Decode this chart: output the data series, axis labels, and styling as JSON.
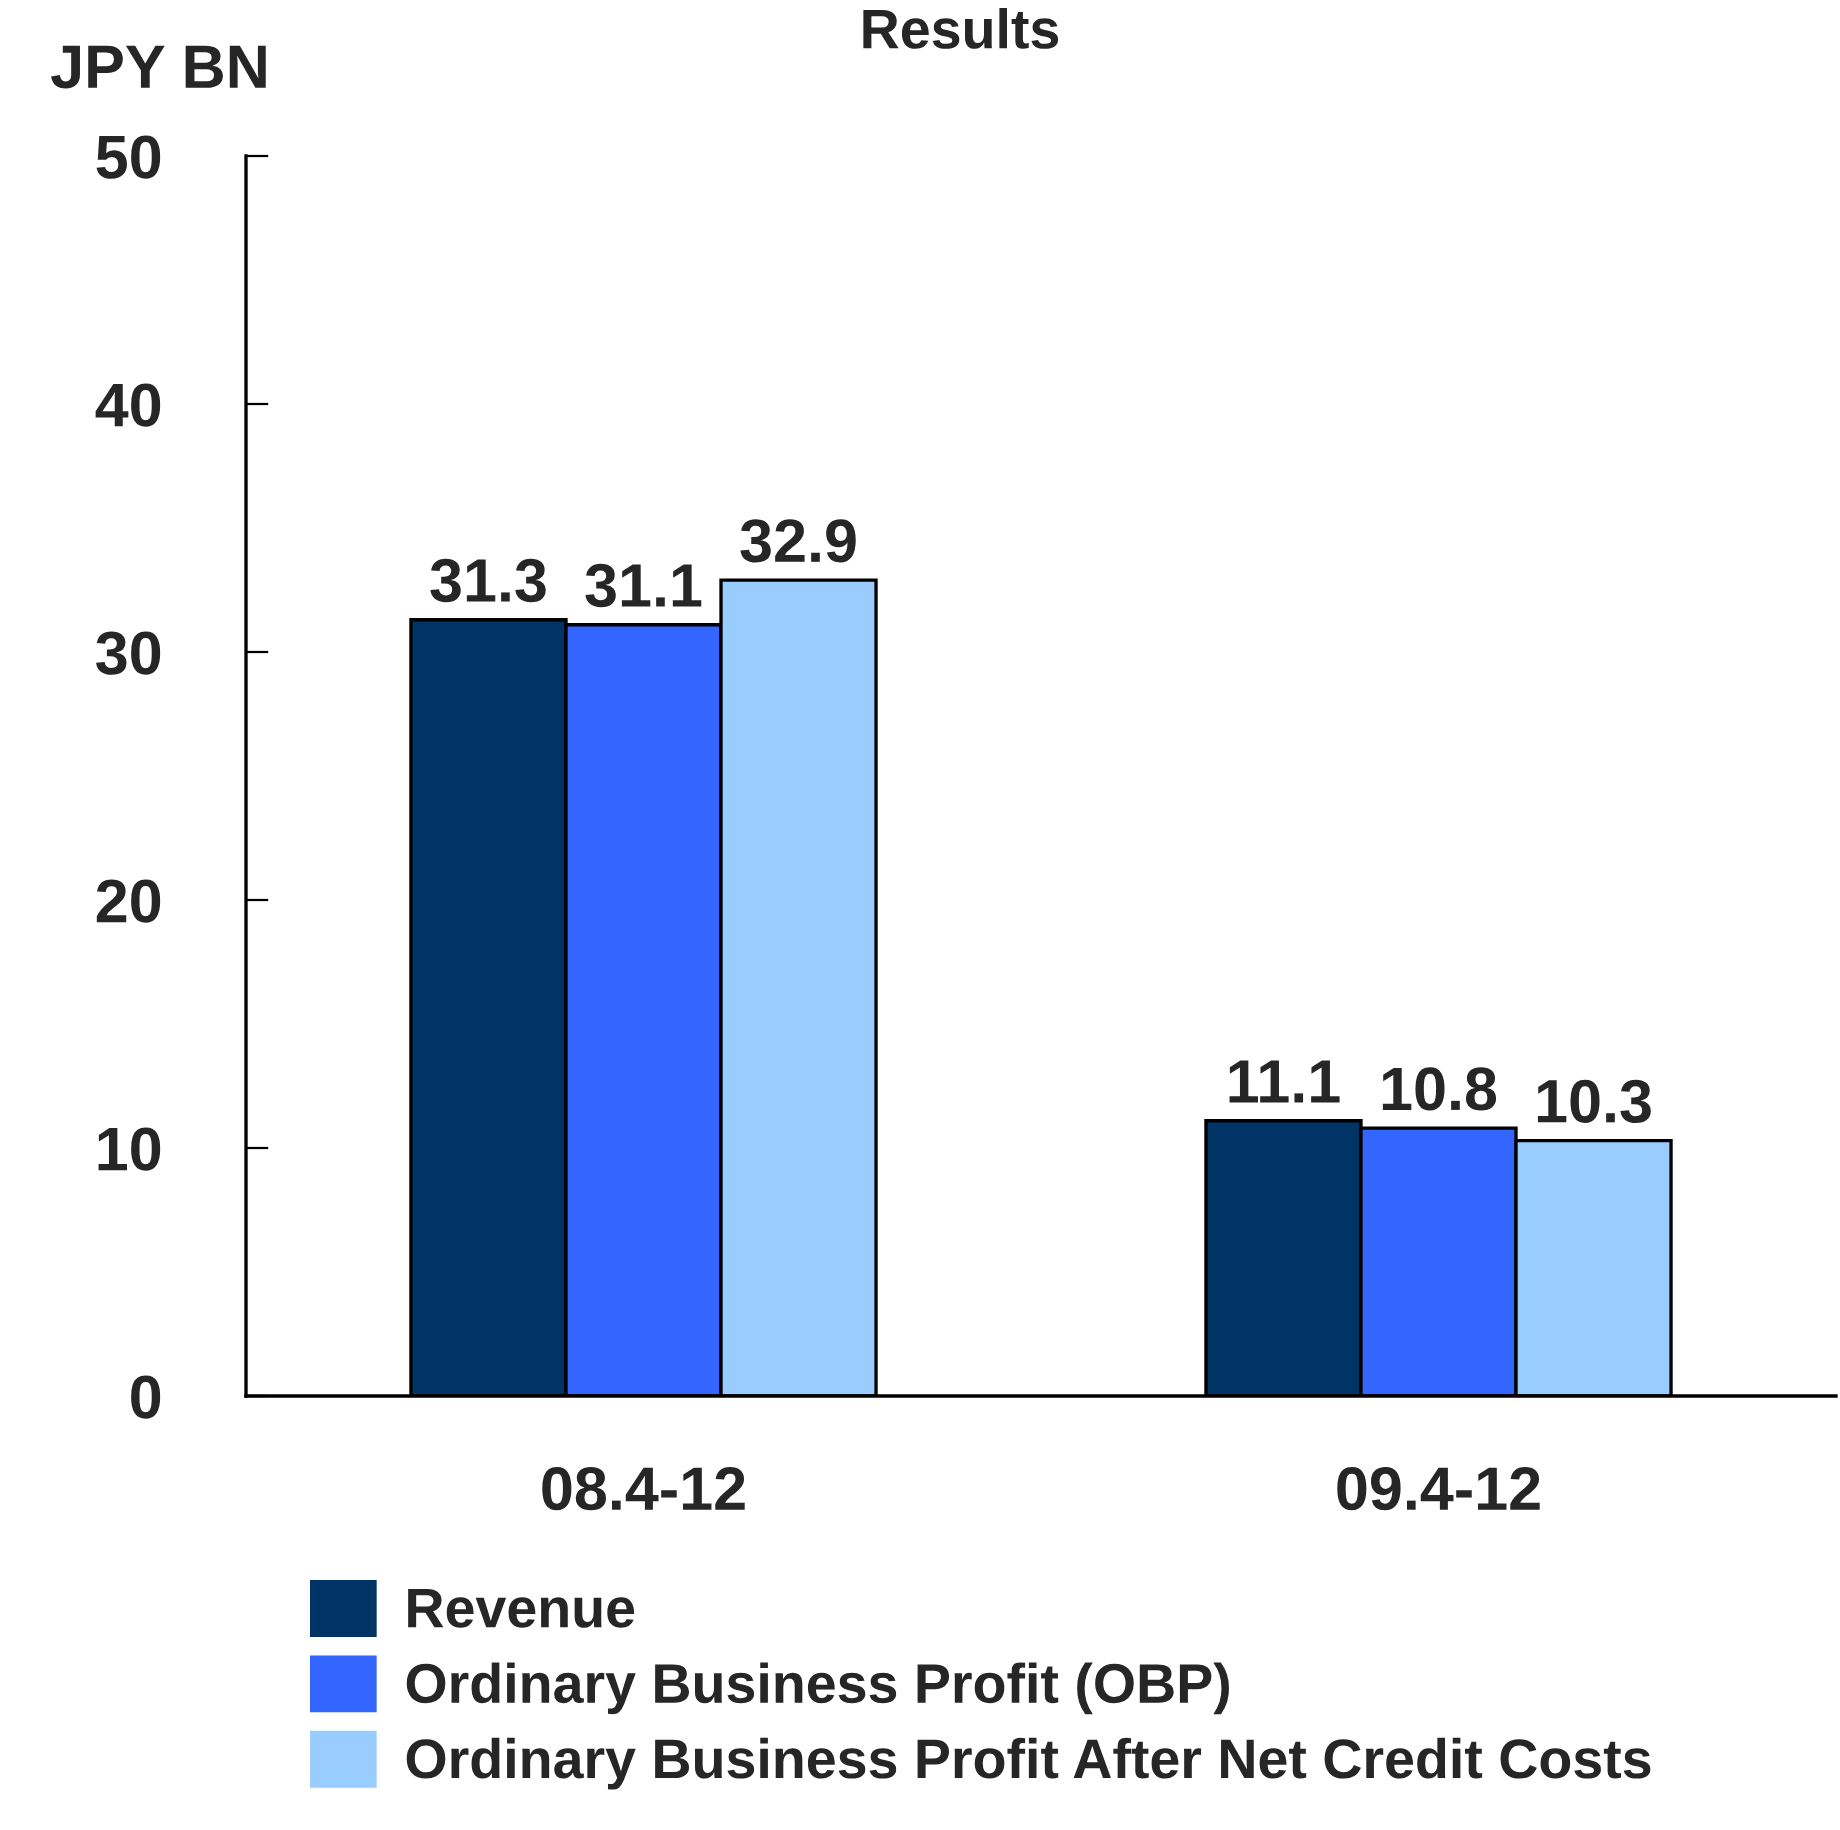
{
  "chart_data": {
    "type": "bar",
    "title": "Results",
    "ylabel": "JPY BN",
    "categories": [
      "08.4-12",
      "09.4-12"
    ],
    "series": [
      {
        "name": "Revenue",
        "color": "#003366",
        "values": [
          31.3,
          11.1
        ]
      },
      {
        "name": "Ordinary Business Profit (OBP)",
        "color": "#3366ff",
        "values": [
          31.1,
          10.8
        ]
      },
      {
        "name": "Ordinary Business Profit After Net Credit Costs",
        "color": "#99ccff",
        "values": [
          32.9,
          10.3
        ]
      }
    ],
    "ylim": [
      0,
      50
    ],
    "yticks": [
      0,
      10,
      20,
      30,
      40,
      50
    ],
    "grid": false,
    "legend": "bottom",
    "data_labels": true
  }
}
